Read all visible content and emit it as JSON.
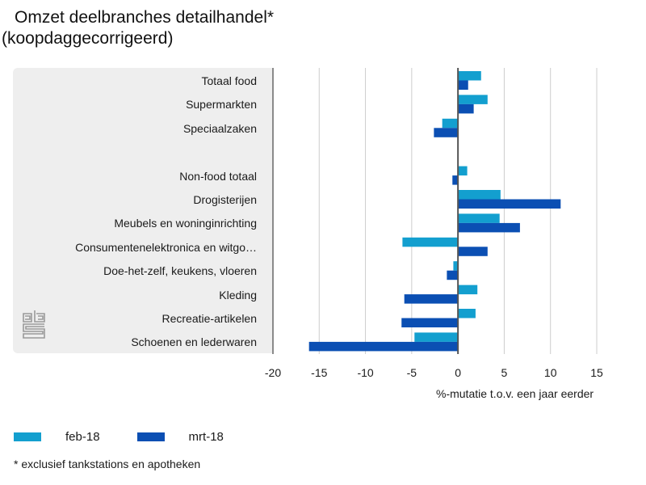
{
  "header": {
    "title": "Omzet deelbranches detailhandel*",
    "subtitle": "(koopdaggecorrigeerd)"
  },
  "colors": {
    "feb": "#139fcf",
    "mrt": "#0b4fb3",
    "panel": "#eeeeee",
    "axis": "#555555",
    "grid": "#cccccc"
  },
  "logo": {
    "icon": "cbs-logo-icon"
  },
  "chart_data": {
    "type": "bar",
    "orientation": "horizontal",
    "title": "Omzet deelbranches detailhandel* (koopdaggecorrigeerd)",
    "xlabel": "%-mutatie t.o.v. een jaar eerder",
    "ylabel": "",
    "xlim": [
      -20,
      15
    ],
    "xticks": [
      -20,
      -15,
      -10,
      -5,
      0,
      5,
      10,
      15
    ],
    "xtick_labels": [
      "-20",
      "-15",
      "-10",
      "-5",
      "0",
      "5",
      "10",
      "15"
    ],
    "grid": true,
    "legend_position": "bottom-left",
    "categories": [
      "Totaal food",
      "Supermarkten",
      "Speciaalzaken",
      "",
      "Non-food totaal",
      "Drogisterijen",
      "Meubels en woninginrichting",
      "Consumentenelektronica en witgo…",
      "Doe-het-zelf, keukens, vloeren",
      "Kleding",
      "Recreatie-artikelen",
      "Schoenen en lederwaren"
    ],
    "series": [
      {
        "name": "feb-18",
        "color": "#139fcf",
        "values": [
          2.5,
          3.2,
          -1.7,
          null,
          1.0,
          4.6,
          4.5,
          -6.0,
          -0.5,
          2.1,
          1.9,
          -4.7
        ]
      },
      {
        "name": "mrt-18",
        "color": "#0b4fb3",
        "values": [
          1.1,
          1.7,
          -2.6,
          null,
          -0.6,
          11.1,
          6.7,
          3.2,
          -1.2,
          -5.8,
          -6.1,
          -16.1
        ]
      }
    ]
  },
  "legend": {
    "items": [
      {
        "label": "feb-18"
      },
      {
        "label": "mrt-18"
      }
    ]
  },
  "footnote": "* exclusief tankstations en apotheken"
}
